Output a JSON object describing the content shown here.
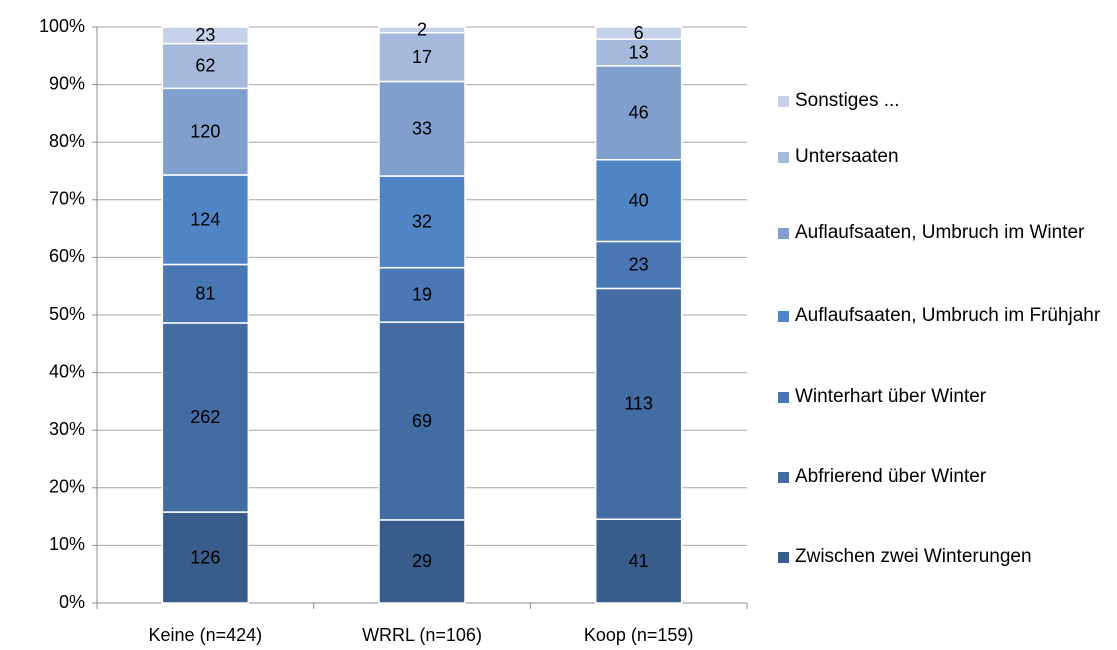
{
  "chart_data": {
    "type": "bar",
    "stacking": "percent",
    "grid": true,
    "categories": [
      "Keine (n=424)",
      "WRRL (n=106)",
      "Koop (n=159)"
    ],
    "ylim": [
      0,
      100
    ],
    "yticks": [
      {
        "value": 0,
        "label": "0%"
      },
      {
        "value": 10,
        "label": "10%"
      },
      {
        "value": 20,
        "label": "20%"
      },
      {
        "value": 30,
        "label": "30%"
      },
      {
        "value": 40,
        "label": "40%"
      },
      {
        "value": 50,
        "label": "50%"
      },
      {
        "value": 60,
        "label": "60%"
      },
      {
        "value": 70,
        "label": "70%"
      },
      {
        "value": 80,
        "label": "80%"
      },
      {
        "value": 90,
        "label": "90%"
      },
      {
        "value": 100,
        "label": "100%"
      }
    ],
    "series": [
      {
        "name": "Zwischen zwei Winterungen",
        "color": "#385d8a",
        "values": [
          126,
          29,
          41
        ]
      },
      {
        "name": "Abfrierend über Winter",
        "color": "#426ca2",
        "values": [
          262,
          69,
          113
        ]
      },
      {
        "name": "Winterhart über Winter",
        "color": "#4877b4",
        "values": [
          81,
          19,
          23
        ]
      },
      {
        "name": "Auflaufsaaten, Umbruch im Frühjahr",
        "color": "#4f85c5",
        "values": [
          124,
          32,
          40
        ]
      },
      {
        "name": "Auflaufsaaten, Umbruch im Winter",
        "color": "#809fcd",
        "values": [
          120,
          33,
          46
        ]
      },
      {
        "name": "Untersaaten",
        "color": "#a5b9dc",
        "values": [
          62,
          17,
          13
        ]
      },
      {
        "name": "Sonstiges ...",
        "color": "#c6d2e9",
        "values": [
          23,
          2,
          6
        ]
      }
    ]
  }
}
